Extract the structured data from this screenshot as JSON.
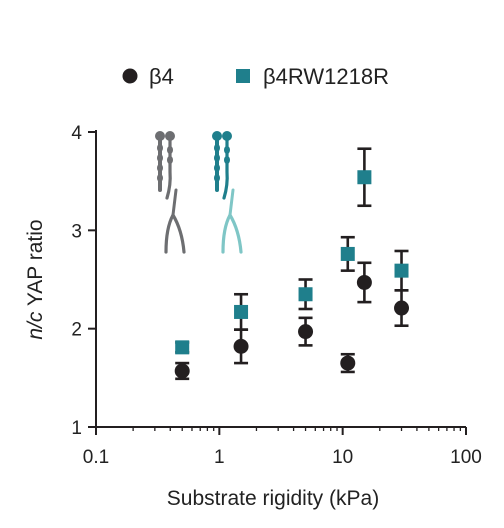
{
  "chart_data": {
    "type": "scatter",
    "title": "",
    "xlabel": "Substrate rigidity (kPa)",
    "ylabel_italic": "n/c",
    "ylabel_rest": " YAP ratio",
    "x_scale": "log",
    "xlim": [
      0.1,
      100
    ],
    "ylim": [
      1,
      4
    ],
    "xticks": [
      0.1,
      1,
      10,
      100
    ],
    "xtick_labels": [
      "0.1",
      "1",
      "10",
      "100"
    ],
    "yticks": [
      1,
      2,
      3,
      4
    ],
    "ytick_labels": [
      "1",
      "2",
      "3",
      "4"
    ],
    "grid": false,
    "legend_position": "top",
    "series": [
      {
        "name": "β4",
        "marker": "circle",
        "color": "#231f20",
        "points": [
          {
            "x": 0.5,
            "y": 1.57,
            "err": 0.08
          },
          {
            "x": 1.5,
            "y": 1.82,
            "err": 0.17
          },
          {
            "x": 5,
            "y": 1.97,
            "err": 0.14
          },
          {
            "x": 11,
            "y": 1.65,
            "err": 0.09
          },
          {
            "x": 15,
            "y": 2.47,
            "err": 0.2
          },
          {
            "x": 30,
            "y": 2.21,
            "err": 0.18
          }
        ]
      },
      {
        "name": "β4RW1218R",
        "marker": "square",
        "color": "#1f7f8c",
        "points": [
          {
            "x": 0.5,
            "y": 1.81,
            "err": 0.05
          },
          {
            "x": 1.5,
            "y": 2.17,
            "err": 0.18
          },
          {
            "x": 5,
            "y": 2.35,
            "err": 0.15
          },
          {
            "x": 11,
            "y": 2.76,
            "err": 0.17
          },
          {
            "x": 15,
            "y": 3.54,
            "err": 0.29
          },
          {
            "x": 30,
            "y": 2.59,
            "err": 0.2
          }
        ]
      }
    ],
    "illustration_colors": [
      "#6d6e71",
      "#1f7f8c",
      "#7fc6c6"
    ]
  }
}
